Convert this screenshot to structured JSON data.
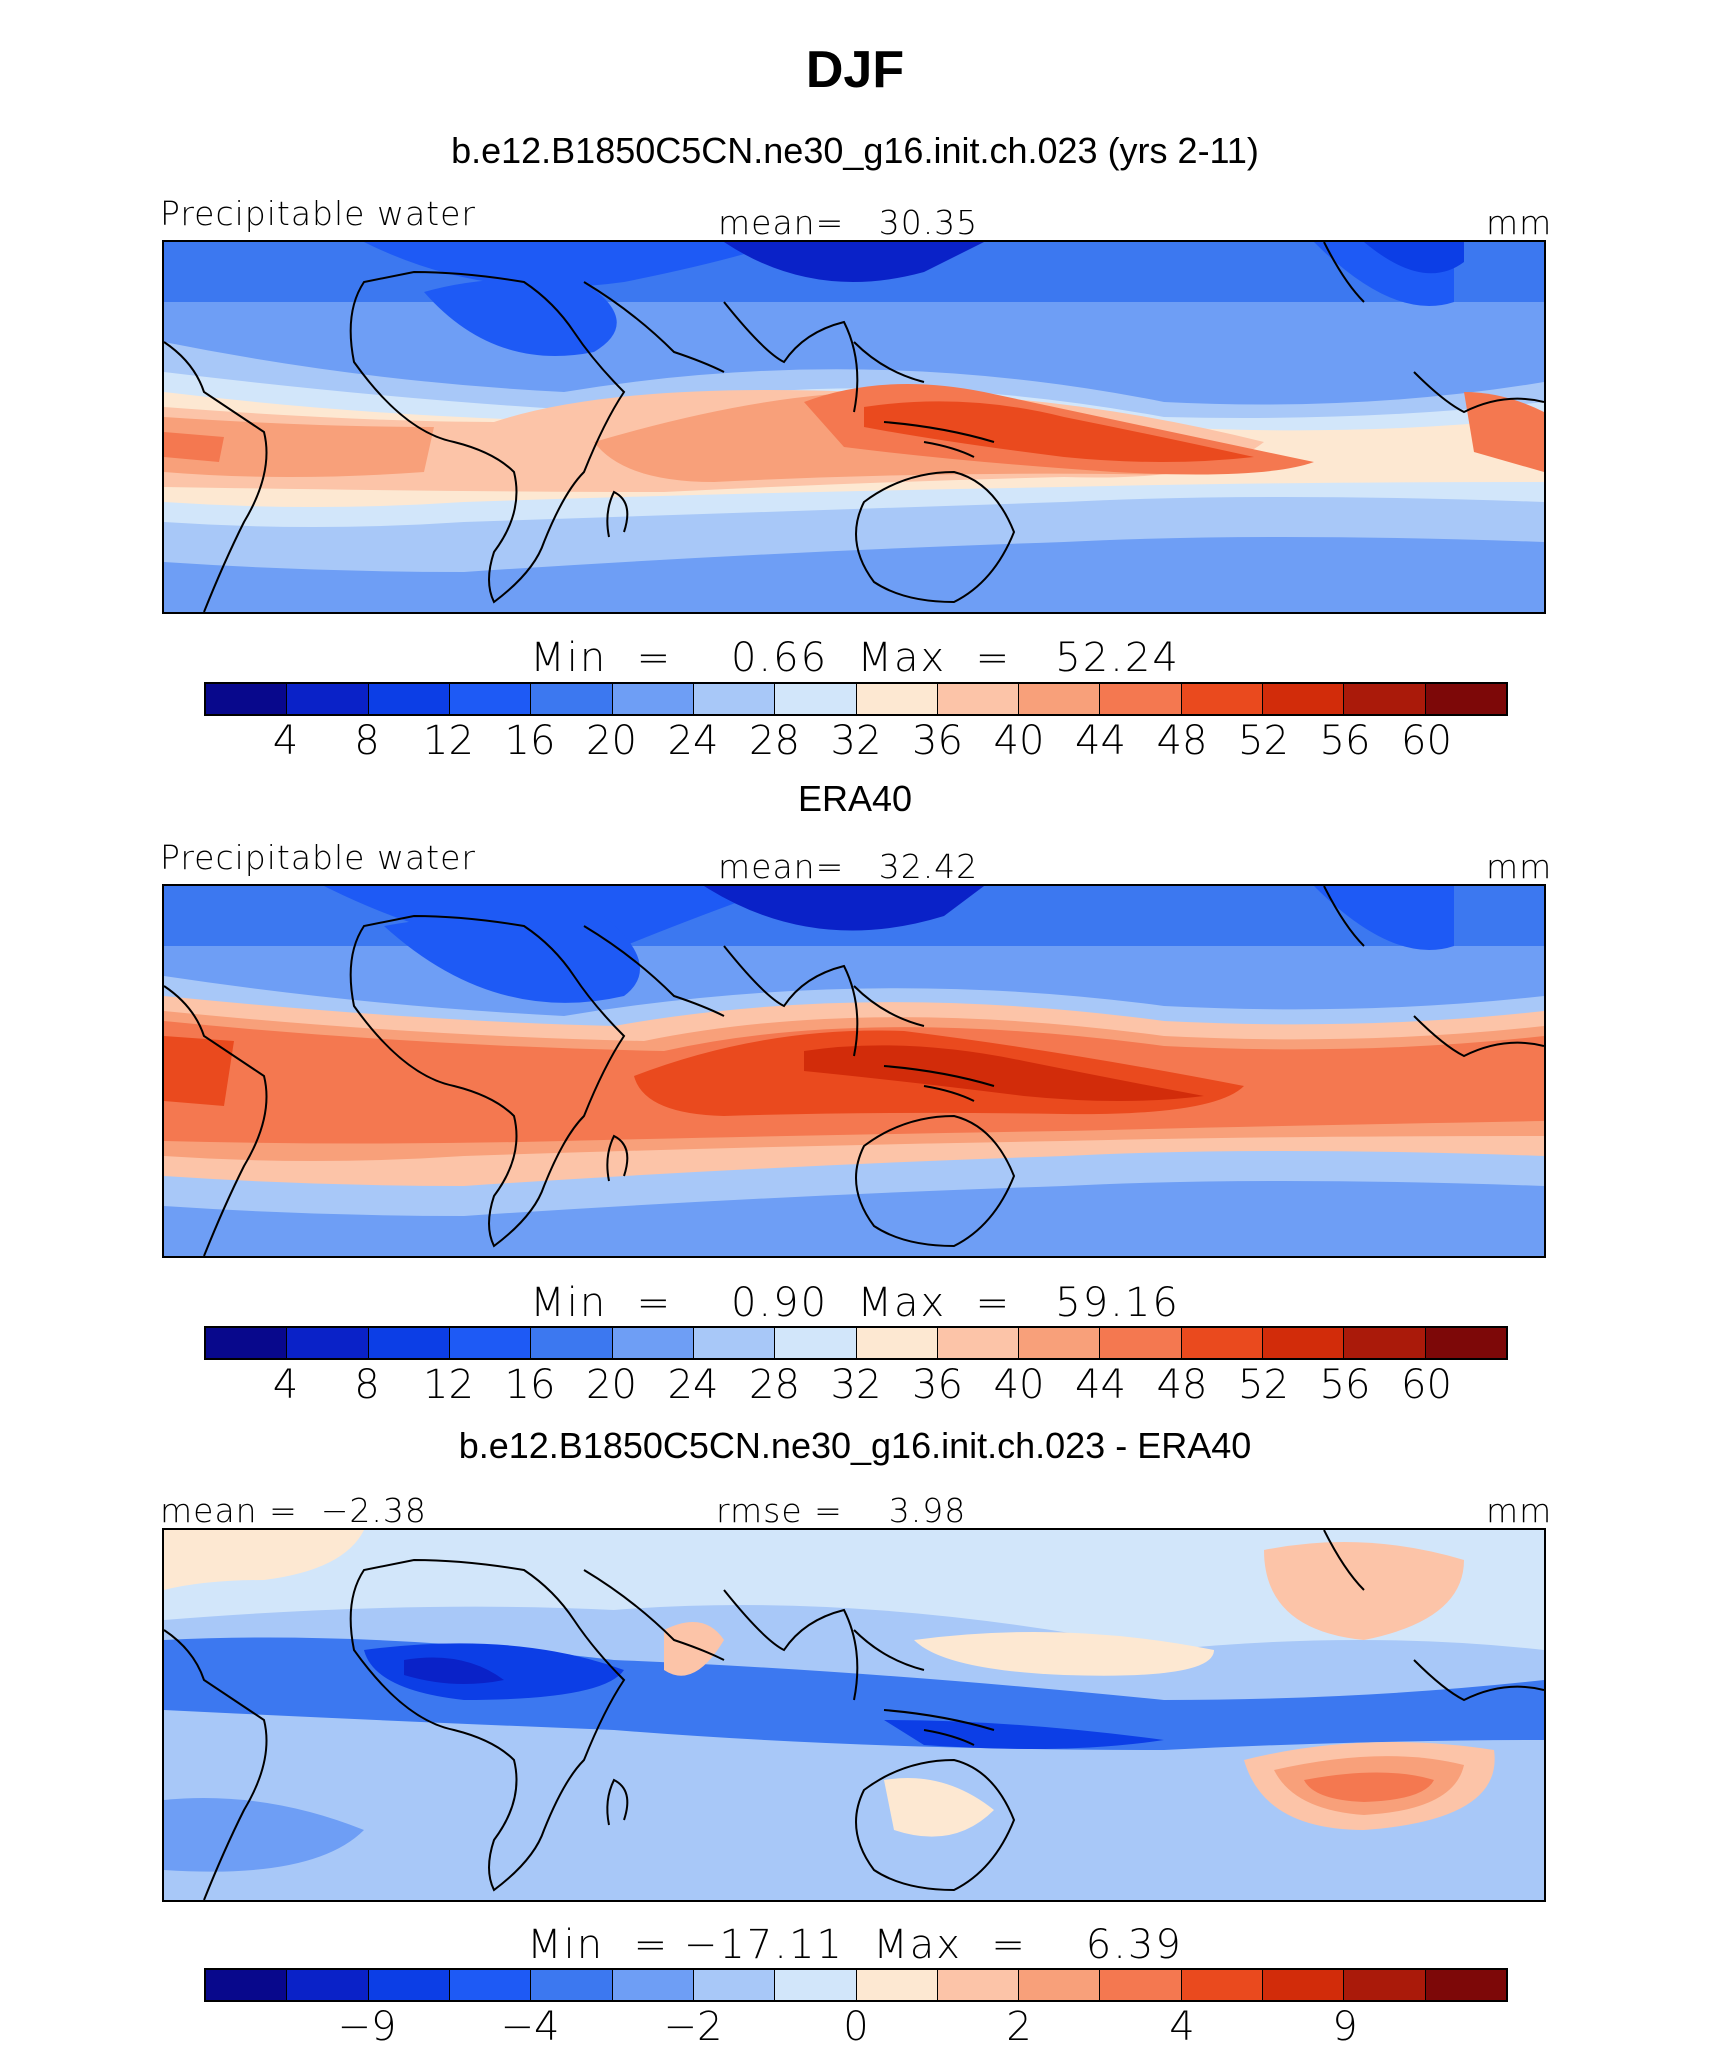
{
  "title": "DJF",
  "colors": [
    "#08088c",
    "#0a22c8",
    "#0c3ee6",
    "#1e5af5",
    "#3c78f0",
    "#6e9ef5",
    "#a8c8f8",
    "#d2e6fa",
    "#fde8d2",
    "#fcc4a8",
    "#f8a07a",
    "#f47850",
    "#ea4a1e",
    "#d22c0a",
    "#aa1a0a",
    "#7d0808"
  ],
  "panels": [
    {
      "name": "model",
      "title": "b.e12.B1850C5CN.ne30_g16.init.ch.023 (yrs 2-11)",
      "left_label": "Precipitable water",
      "center_label": "mean=   30.35",
      "units": "mm",
      "minmax": "Min  =    0.66  Max  =   52.24",
      "ticks": [
        "4",
        "8",
        "12",
        "16",
        "20",
        "24",
        "28",
        "32",
        "36",
        "40",
        "44",
        "48",
        "52",
        "56",
        "60"
      ]
    },
    {
      "name": "obs",
      "title": "ERA40",
      "left_label": "Precipitable water",
      "center_label": "mean=   32.42",
      "units": "mm",
      "minmax": "Min  =    0.90  Max  =   59.16",
      "ticks": [
        "4",
        "8",
        "12",
        "16",
        "20",
        "24",
        "28",
        "32",
        "36",
        "40",
        "44",
        "48",
        "52",
        "56",
        "60"
      ]
    },
    {
      "name": "diff",
      "title": "b.e12.B1850C5CN.ne30_g16.init.ch.023 - ERA40",
      "left_label": "mean =  −2.38",
      "center_label": "rmse =    3.98",
      "units": "mm",
      "minmax": "Min  = −17.11  Max  =    6.39",
      "ticks": [
        "−9",
        "−4",
        "−2",
        "0",
        "2",
        "4",
        "9"
      ]
    }
  ]
}
